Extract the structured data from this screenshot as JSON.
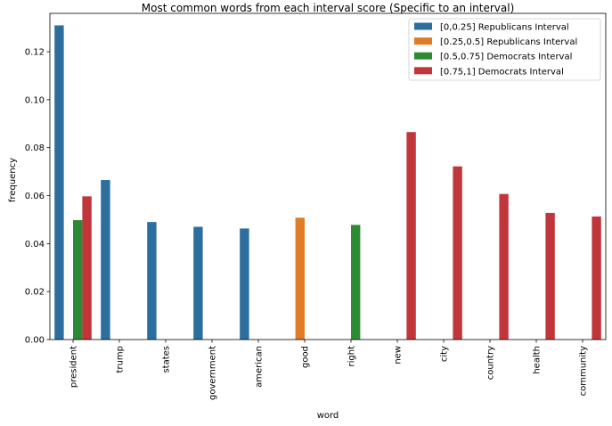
{
  "chart_data": {
    "type": "bar",
    "title": "Most common words from each interval score (Specific to an interval)",
    "xlabel": "word",
    "ylabel": "frequency",
    "ylim": [
      0,
      0.136
    ],
    "yticks": [
      "0.00",
      "0.02",
      "0.04",
      "0.06",
      "0.08",
      "0.10",
      "0.12"
    ],
    "grid": false,
    "legend_position": "top-right",
    "categories": [
      "president",
      "trump",
      "states",
      "government",
      "american",
      "good",
      "right",
      "new",
      "city",
      "country",
      "health",
      "community"
    ],
    "series": [
      {
        "name": "[0,0.25] Republicans Interval",
        "color": "#2c6e9e",
        "values": [
          0.131,
          0.0665,
          0.049,
          0.047,
          0.0463,
          null,
          null,
          null,
          null,
          null,
          null,
          null
        ]
      },
      {
        "name": "[0.25,0.5] Republicans Interval",
        "color": "#e07b28",
        "values": [
          null,
          null,
          null,
          null,
          null,
          0.0508,
          null,
          null,
          null,
          null,
          null,
          null
        ]
      },
      {
        "name": "[0.5,0.75] Democrats Interval",
        "color": "#2e8b35",
        "values": [
          0.0498,
          null,
          null,
          null,
          null,
          null,
          0.0478,
          null,
          null,
          null,
          null,
          null
        ]
      },
      {
        "name": "[0.75,1] Democrats Interval",
        "color": "#c0363a",
        "values": [
          0.0597,
          null,
          null,
          null,
          null,
          null,
          null,
          0.0865,
          0.0722,
          0.0607,
          0.0528,
          0.0513
        ]
      }
    ]
  }
}
